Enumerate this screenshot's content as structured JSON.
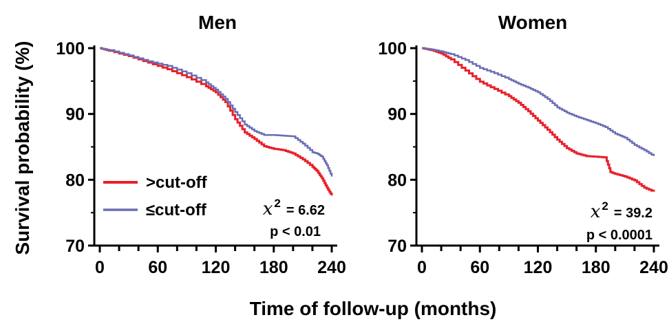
{
  "colors": {
    "above": "#e8202a",
    "below": "#6a6db3",
    "axis": "#000000"
  },
  "figure": {
    "ylabel": "Survival probability (%)",
    "xlabel": "Time of follow-up (months)"
  },
  "legend": [
    {
      "label": ">cut-off",
      "series": "above"
    },
    {
      "label": "cut-off",
      "prefix_symbol": "≤",
      "series": "below"
    }
  ],
  "chart_data": [
    {
      "type": "line",
      "title": "Men",
      "xlim": [
        0,
        240
      ],
      "ylim": [
        70,
        100
      ],
      "xticks": [
        0,
        60,
        120,
        180,
        240
      ],
      "yticks": [
        70,
        80,
        90,
        100
      ],
      "stats": {
        "chi_symbol": "x",
        "chi_sup": "2",
        "chi_value": "=  6.62",
        "p_text": "p < 0.01"
      },
      "series": [
        {
          "key": "above",
          "name": ">cut-off",
          "x": [
            0,
            10,
            30,
            50,
            70,
            90,
            110,
            120,
            130,
            140,
            150,
            160,
            170,
            180,
            190,
            200,
            210,
            220,
            225,
            230,
            235,
            240
          ],
          "y": [
            100,
            99.6,
            98.8,
            97.8,
            96.8,
            95.6,
            94.2,
            93.3,
            91.8,
            89.2,
            87.2,
            86.2,
            85.1,
            84.7,
            84.5,
            84.0,
            83.1,
            82.0,
            81.3,
            80.2,
            78.8,
            77.6
          ]
        },
        {
          "key": "below",
          "name": "cut-off",
          "x": [
            0,
            10,
            30,
            50,
            70,
            90,
            110,
            120,
            130,
            140,
            150,
            160,
            170,
            180,
            190,
            200,
            210,
            220,
            225,
            230,
            235,
            240
          ],
          "y": [
            100,
            99.7,
            98.9,
            98.0,
            97.3,
            96.2,
            94.8,
            93.7,
            92.3,
            90.3,
            88.4,
            87.4,
            86.8,
            86.8,
            86.7,
            86.6,
            85.5,
            84.2,
            84.0,
            83.5,
            82.2,
            80.5
          ]
        }
      ]
    },
    {
      "type": "line",
      "title": "Women",
      "xlim": [
        0,
        240
      ],
      "ylim": [
        70,
        100
      ],
      "xticks": [
        0,
        60,
        120,
        180,
        240
      ],
      "yticks": [
        70,
        80,
        90,
        100
      ],
      "stats": {
        "chi_symbol": "x",
        "chi_sup": "2",
        "chi_value": "=  39.2",
        "p_text": "p < 0.0001"
      },
      "series": [
        {
          "key": "above",
          "name": ">cut-off",
          "x": [
            0,
            10,
            20,
            30,
            45,
            60,
            75,
            90,
            100,
            110,
            120,
            130,
            140,
            150,
            160,
            170,
            180,
            190,
            195,
            200,
            210,
            220,
            230,
            240
          ],
          "y": [
            100,
            99.7,
            99.2,
            98.3,
            96.6,
            94.9,
            93.8,
            92.7,
            91.7,
            90.4,
            89.0,
            87.6,
            86.1,
            84.8,
            84.0,
            83.6,
            83.5,
            83.4,
            81.2,
            80.9,
            80.5,
            79.9,
            78.8,
            78.2
          ]
        },
        {
          "key": "below",
          "name": "cut-off",
          "x": [
            0,
            10,
            20,
            30,
            45,
            60,
            75,
            90,
            100,
            110,
            120,
            130,
            140,
            150,
            160,
            170,
            180,
            190,
            200,
            210,
            220,
            230,
            240
          ],
          "y": [
            100,
            99.8,
            99.5,
            99.1,
            98.2,
            97.0,
            96.2,
            95.3,
            94.6,
            94.0,
            93.3,
            92.3,
            91.0,
            90.2,
            89.6,
            89.1,
            88.6,
            88.0,
            87.0,
            86.4,
            85.3,
            84.5,
            83.6
          ]
        }
      ]
    }
  ]
}
